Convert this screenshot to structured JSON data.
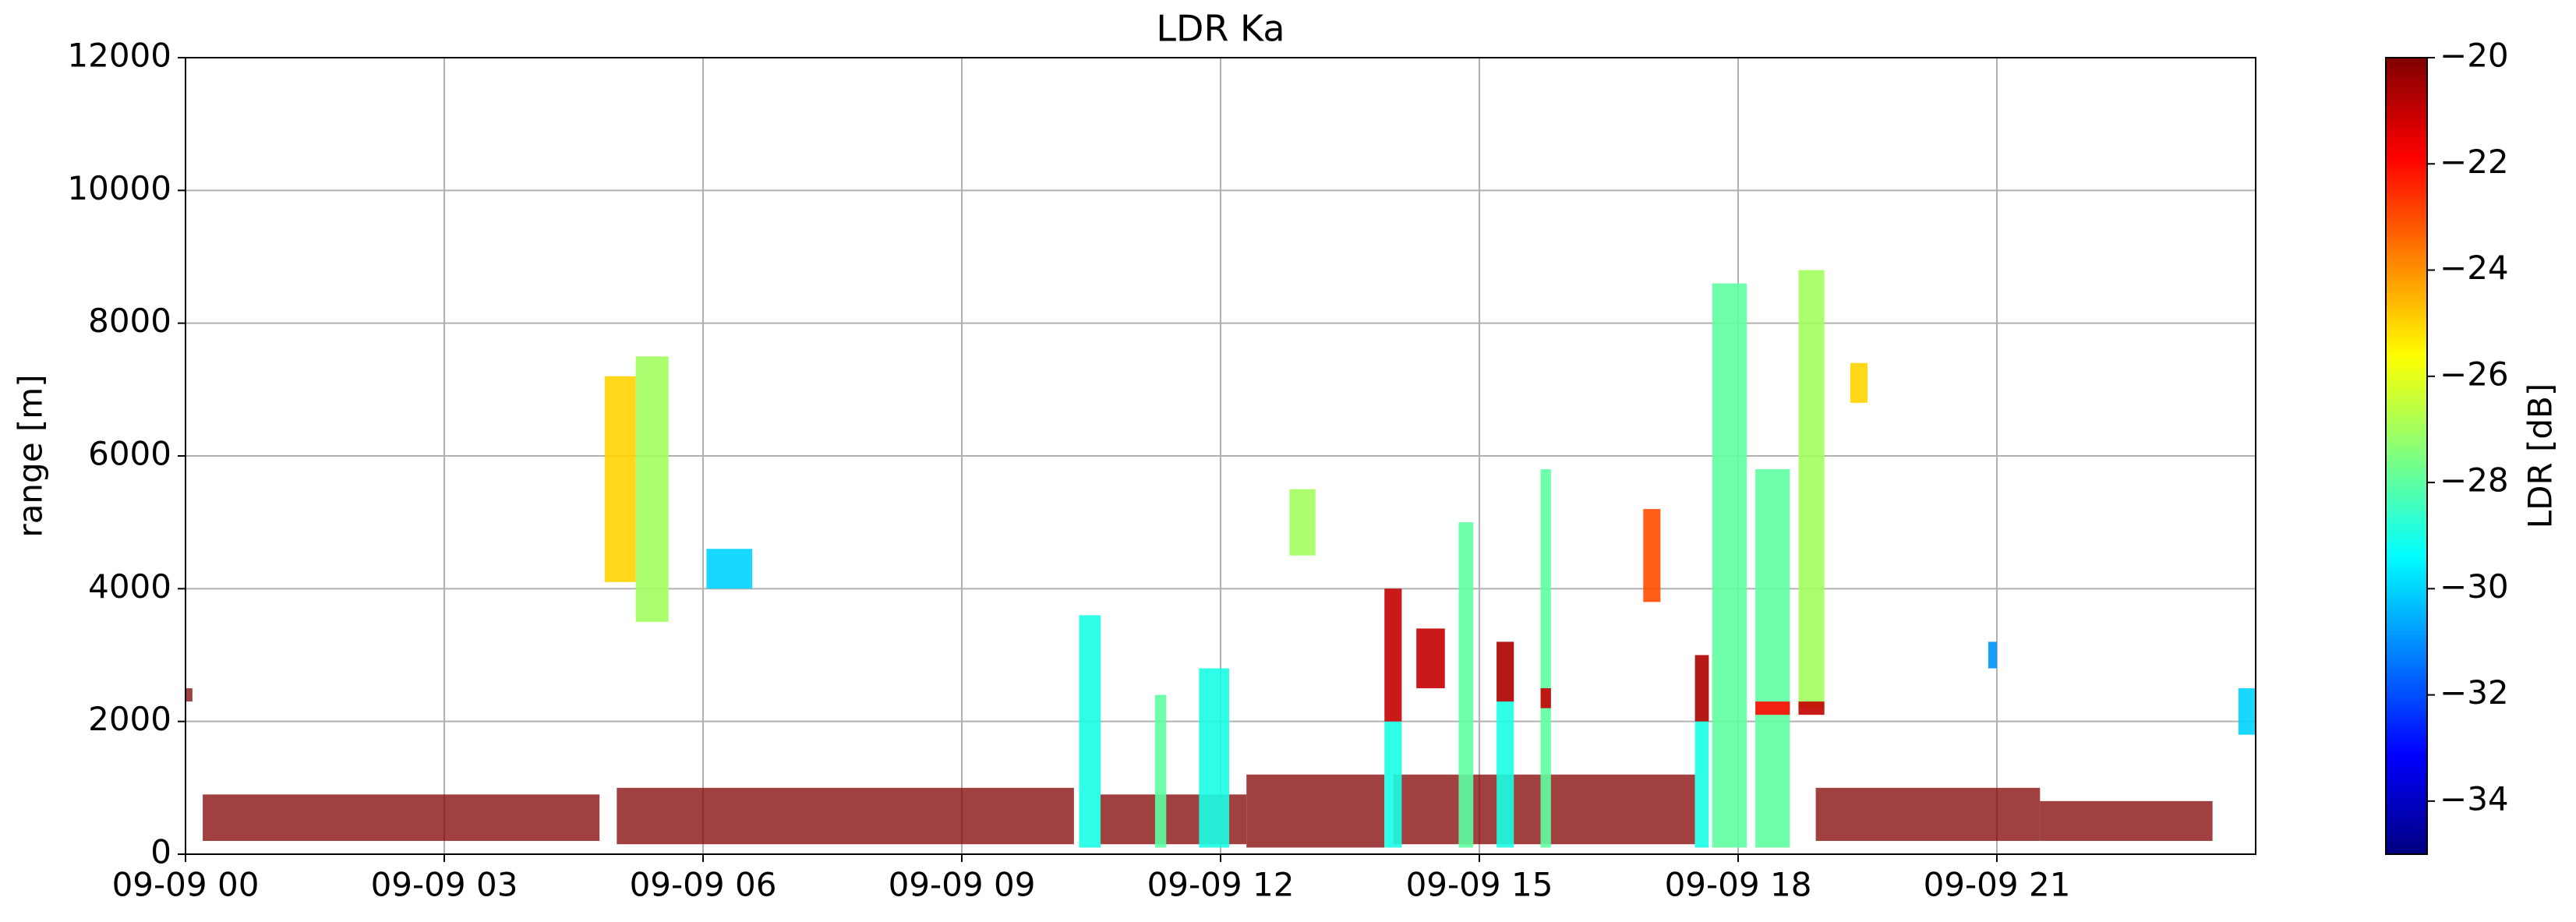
{
  "chart_data": {
    "type": "heatmap",
    "title": "LDR Ka",
    "ylabel": "range [m]",
    "colorbar_label": "LDR [dB]",
    "colormap": "jet",
    "grid": true,
    "xlim": [
      0,
      24
    ],
    "ylim": [
      0,
      12000
    ],
    "clim": [
      -35,
      -20
    ],
    "xticks": [
      {
        "value": 0,
        "label": "09-09 00"
      },
      {
        "value": 3,
        "label": "09-09 03"
      },
      {
        "value": 6,
        "label": "09-09 06"
      },
      {
        "value": 9,
        "label": "09-09 09"
      },
      {
        "value": 12,
        "label": "09-09 12"
      },
      {
        "value": 15,
        "label": "09-09 15"
      },
      {
        "value": 18,
        "label": "09-09 18"
      },
      {
        "value": 21,
        "label": "09-09 21"
      }
    ],
    "yticks": [
      0,
      2000,
      4000,
      6000,
      8000,
      10000,
      12000
    ],
    "cticks": [
      {
        "value": -20,
        "label": "−20"
      },
      {
        "value": -22,
        "label": "−22"
      },
      {
        "value": -24,
        "label": "−24"
      },
      {
        "value": -26,
        "label": "−26"
      },
      {
        "value": -28,
        "label": "−28"
      },
      {
        "value": -30,
        "label": "−30"
      },
      {
        "value": -32,
        "label": "−32"
      },
      {
        "value": -34,
        "label": "−34"
      }
    ],
    "cells": [
      {
        "t": [
          0.2,
          4.8
        ],
        "range": [
          200,
          900
        ],
        "value": -20
      },
      {
        "t": [
          5.0,
          10.3
        ],
        "range": [
          150,
          1000
        ],
        "value": -20
      },
      {
        "t": [
          10.6,
          12.3
        ],
        "range": [
          150,
          900
        ],
        "value": -20
      },
      {
        "t": [
          12.3,
          13.9
        ],
        "range": [
          100,
          1200
        ],
        "value": -20
      },
      {
        "t": [
          14.0,
          17.5
        ],
        "range": [
          150,
          1200
        ],
        "value": -20
      },
      {
        "t": [
          18.9,
          21.5
        ],
        "range": [
          200,
          1000
        ],
        "value": -20
      },
      {
        "t": [
          21.5,
          23.5
        ],
        "range": [
          200,
          800
        ],
        "value": -20
      },
      {
        "t": [
          0.0,
          0.08
        ],
        "range": [
          2300,
          2500
        ],
        "value": -20
      },
      {
        "t": [
          4.86,
          5.22
        ],
        "range": [
          4100,
          7200
        ],
        "value": -25
      },
      {
        "t": [
          5.22,
          5.6
        ],
        "range": [
          3500,
          7500
        ],
        "value": -27
      },
      {
        "t": [
          6.04,
          6.57
        ],
        "range": [
          4000,
          4600
        ],
        "value": -30
      },
      {
        "t": [
          10.36,
          10.61
        ],
        "range": [
          100,
          3600
        ],
        "value": -29
      },
      {
        "t": [
          11.24,
          11.37
        ],
        "range": [
          100,
          2400
        ],
        "value": -28
      },
      {
        "t": [
          11.75,
          12.1
        ],
        "range": [
          100,
          2800
        ],
        "value": -29
      },
      {
        "t": [
          12.8,
          13.1
        ],
        "range": [
          4500,
          5500
        ],
        "value": -27
      },
      {
        "t": [
          13.9,
          14.1
        ],
        "range": [
          100,
          2000
        ],
        "value": -29
      },
      {
        "t": [
          13.9,
          14.1
        ],
        "range": [
          2000,
          4000
        ],
        "value": -21
      },
      {
        "t": [
          14.27,
          14.6
        ],
        "range": [
          2500,
          3400
        ],
        "value": -21
      },
      {
        "t": [
          14.76,
          14.93
        ],
        "range": [
          100,
          5000
        ],
        "value": -28
      },
      {
        "t": [
          15.2,
          15.4
        ],
        "range": [
          100,
          3200
        ],
        "value": -29
      },
      {
        "t": [
          15.2,
          15.4
        ],
        "range": [
          2300,
          3200
        ],
        "value": -21
      },
      {
        "t": [
          15.71,
          15.83
        ],
        "range": [
          100,
          5800
        ],
        "value": -28
      },
      {
        "t": [
          15.71,
          15.83
        ],
        "range": [
          2200,
          2500
        ],
        "value": -21
      },
      {
        "t": [
          16.9,
          17.1
        ],
        "range": [
          3800,
          5200
        ],
        "value": -23
      },
      {
        "t": [
          17.5,
          17.66
        ],
        "range": [
          100,
          3000
        ],
        "value": -29
      },
      {
        "t": [
          17.5,
          17.66
        ],
        "range": [
          2000,
          3000
        ],
        "value": -21
      },
      {
        "t": [
          17.7,
          18.1
        ],
        "range": [
          100,
          8600
        ],
        "value": -28
      },
      {
        "t": [
          18.2,
          18.6
        ],
        "range": [
          100,
          5800
        ],
        "value": -28
      },
      {
        "t": [
          18.2,
          18.6
        ],
        "range": [
          2100,
          2300
        ],
        "value": -22
      },
      {
        "t": [
          18.7,
          19.0
        ],
        "range": [
          2200,
          8800
        ],
        "value": -27
      },
      {
        "t": [
          18.7,
          19.0
        ],
        "range": [
          2100,
          2300
        ],
        "value": -21
      },
      {
        "t": [
          19.3,
          19.5
        ],
        "range": [
          6800,
          7400
        ],
        "value": -25
      },
      {
        "t": [
          20.9,
          21.0
        ],
        "range": [
          2800,
          3200
        ],
        "value": -31
      },
      {
        "t": [
          23.8,
          24.0
        ],
        "range": [
          1800,
          2500
        ],
        "value": -30
      }
    ]
  }
}
